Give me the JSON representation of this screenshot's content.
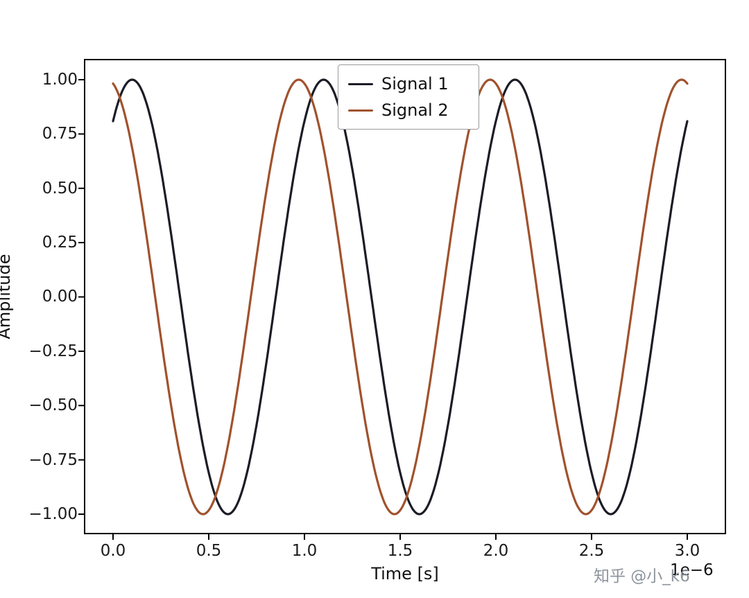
{
  "watermark": {
    "text": "知乎 @小_k6"
  },
  "chart_data": {
    "type": "line",
    "title": "",
    "xlabel": "Time [s]",
    "ylabel": "Amplitude",
    "x_offset_text": "1e−6",
    "x_scale_note": "x axis values are in units of 1e-6 seconds",
    "xlim": [
      -0.15,
      3.2
    ],
    "ylim": [
      -1.09,
      1.1
    ],
    "grid": false,
    "x_ticks": [
      "0.0",
      "0.5",
      "1.0",
      "1.5",
      "2.0",
      "2.5",
      "3.0"
    ],
    "x_tick_values": [
      0,
      0.5,
      1.0,
      1.5,
      2.0,
      2.5,
      3.0
    ],
    "y_ticks": [
      "1.00",
      "0.75",
      "0.50",
      "0.25",
      "0.00",
      "−0.25",
      "−0.50",
      "−0.75",
      "−1.00"
    ],
    "y_tick_values": [
      1.0,
      0.75,
      0.5,
      0.25,
      0.0,
      -0.25,
      -0.5,
      -0.75,
      -1.0
    ],
    "legend": {
      "position": "upper center",
      "labels": [
        "Signal 1",
        "Signal 2"
      ]
    },
    "series": [
      {
        "name": "Signal 1",
        "color": "#1c1c26",
        "shape": "cosine",
        "amplitude": 1.0,
        "period": 1.0,
        "peak_x": 0.1,
        "x_start": 0.0,
        "x_end": 3.0,
        "key_points": {
          "maxima_x": [
            0.1,
            1.1,
            2.1
          ],
          "minima_x": [
            0.6,
            1.6,
            2.6
          ],
          "value_at_0": 0.81,
          "value_at_3": 0.81
        }
      },
      {
        "name": "Signal 2",
        "color": "#a0522d",
        "shape": "cosine",
        "amplitude": 1.0,
        "period": 1.0,
        "peak_x": -0.03,
        "x_start": 0.0,
        "x_end": 3.0,
        "key_points": {
          "maxima_x": [
            0.97,
            1.97,
            2.97
          ],
          "minima_x": [
            0.47,
            1.47,
            2.47
          ],
          "value_at_0": 0.98,
          "value_at_3": 0.98
        }
      }
    ]
  }
}
